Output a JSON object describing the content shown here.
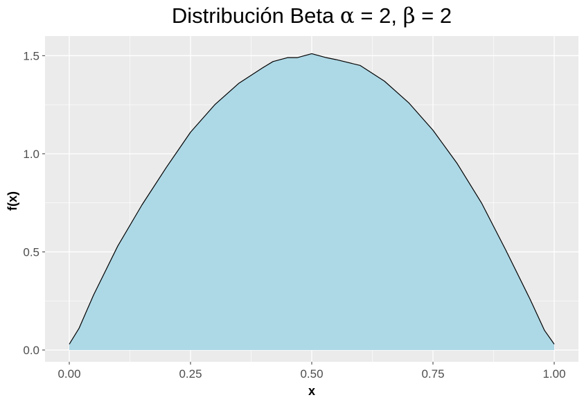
{
  "chart_data": {
    "type": "area",
    "title": "Distribución Beta α = 2, β = 2",
    "title_parts": {
      "text": "Distribución Beta ",
      "alpha_symbol": "α",
      "alpha_eq": " = 2, ",
      "beta_symbol": "β",
      "beta_eq": " = 2"
    },
    "xlabel": "x",
    "ylabel": "f(x)",
    "xlim": [
      -0.05,
      1.05
    ],
    "ylim": [
      -0.06,
      1.6
    ],
    "x_ticks": [
      0.0,
      0.25,
      0.5,
      0.75,
      1.0
    ],
    "x_tick_labels": [
      "0.00",
      "0.25",
      "0.50",
      "0.75",
      "1.00"
    ],
    "y_ticks": [
      0.0,
      0.5,
      1.0,
      1.5
    ],
    "y_tick_labels": [
      "0.0",
      "0.5",
      "1.0",
      "1.5"
    ],
    "grid": true,
    "series": [
      {
        "x": [
          0.0,
          0.02,
          0.05,
          0.1,
          0.15,
          0.2,
          0.25,
          0.3,
          0.35,
          0.4,
          0.42,
          0.45,
          0.47,
          0.5,
          0.53,
          0.55,
          0.6,
          0.65,
          0.7,
          0.75,
          0.8,
          0.85,
          0.9,
          0.95,
          0.98,
          1.0
        ],
        "y": [
          0.03,
          0.11,
          0.28,
          0.53,
          0.74,
          0.93,
          1.11,
          1.25,
          1.36,
          1.44,
          1.47,
          1.49,
          1.49,
          1.51,
          1.49,
          1.48,
          1.45,
          1.37,
          1.26,
          1.12,
          0.95,
          0.75,
          0.51,
          0.26,
          0.1,
          0.03
        ]
      }
    ],
    "colors": {
      "fill": "#add8e6",
      "line": "#000000",
      "panel": "#ebebeb",
      "grid": "#ffffff"
    }
  }
}
